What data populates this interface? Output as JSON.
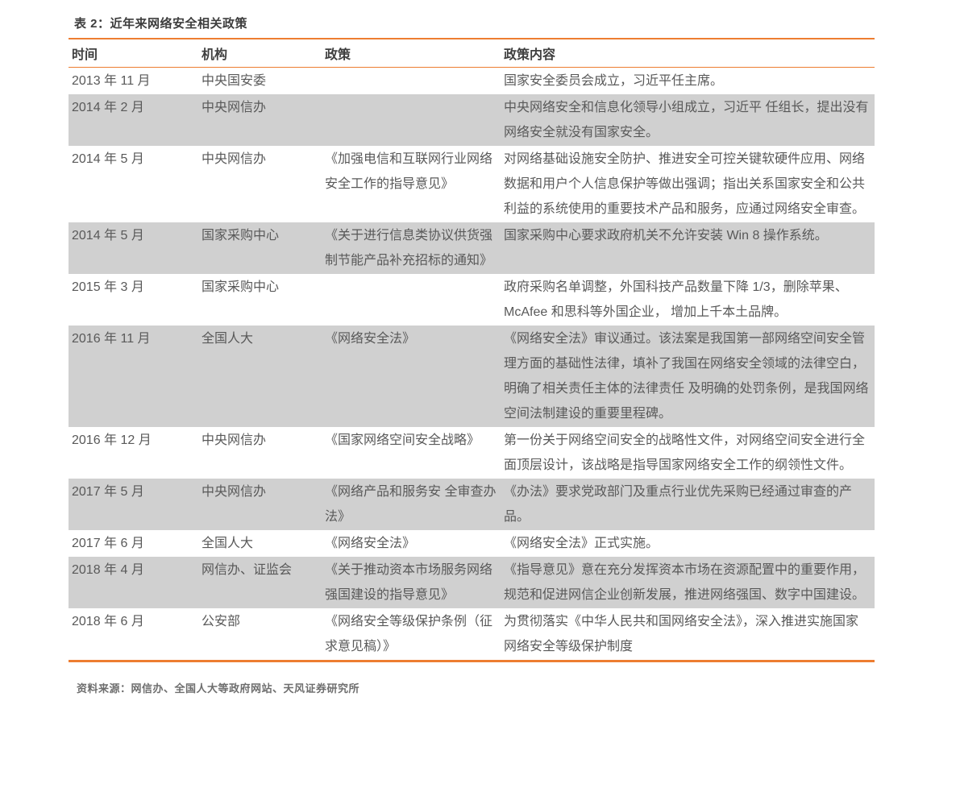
{
  "title": "表 2：近年来网络安全相关政策",
  "colors": {
    "accent_orange": "#ED7D31",
    "row_shade_gray": "#D0D0D0"
  },
  "table": {
    "headers": [
      "时间",
      "机构",
      "政策",
      "政策内容"
    ],
    "rows": [
      {
        "time": "2013 年 11 月",
        "org": "中央国安委",
        "policy": "",
        "content": "国家安全委员会成立，习近平任主席。",
        "shaded": false
      },
      {
        "time": "2014 年 2 月",
        "org": "中央网信办",
        "policy": "",
        "content": "中央网络安全和信息化领导小组成立，习近平 任组长，提出没有网络安全就没有国家安全。",
        "shaded": true
      },
      {
        "time": "2014 年 5 月",
        "org": "中央网信办",
        "policy": "《加强电信和互联网行业网络安全工作的指导意见》",
        "content": "对网络基础设施安全防护、推进安全可控关键软硬件应用、网络数据和用户个人信息保护等做出强调；指出关系国家安全和公共利益的系统使用的重要技术产品和服务，应通过网络安全审查。",
        "shaded": false
      },
      {
        "time": "2014 年 5 月",
        "org": "国家采购中心",
        "policy": "《关于进行信息类协议供货强制节能产品补充招标的通知》",
        "content": "国家采购中心要求政府机关不允许安装 Win 8 操作系统。",
        "shaded": true
      },
      {
        "time": "2015 年 3 月",
        "org": "国家采购中心",
        "policy": "",
        "content": "政府采购名单调整，外国科技产品数量下降 1/3，删除苹果、McAfee 和思科等外国企业， 增加上千本土品牌。",
        "shaded": false
      },
      {
        "time": "2016 年 11 月",
        "org": "全国人大",
        "policy": "《网络安全法》",
        "content": "《网络安全法》审议通过。该法案是我国第一部网络空间安全管理方面的基础性法律，填补了我国在网络安全领域的法律空白，明确了相关责任主体的法律责任 及明确的处罚条例，是我国网络空间法制建设的重要里程碑。",
        "shaded": true
      },
      {
        "time": "2016 年 12 月",
        "org": "中央网信办",
        "policy": "《国家网络空间安全战略》",
        "content": "第一份关于网络空间安全的战略性文件，对网络空间安全进行全面顶层设计，该战略是指导国家网络安全工作的纲领性文件。",
        "shaded": false
      },
      {
        "time": "2017 年 5 月",
        "org": "中央网信办",
        "policy": "《网络产品和服务安 全审查办法》",
        "content": "《办法》要求党政部门及重点行业优先采购已经通过审查的产品。",
        "shaded": true
      },
      {
        "time": "2017 年 6 月",
        "org": "全国人大",
        "policy": "《网络安全法》",
        "content": "《网络安全法》正式实施。",
        "shaded": false
      },
      {
        "time": "2018 年 4 月",
        "org": "网信办、证监会",
        "policy": "《关于推动资本市场服务网络强国建设的指导意见》",
        "content": "《指导意见》意在充分发挥资本市场在资源配置中的重要作用，规范和促进网信企业创新发展，推进网络强国、数字中国建设。",
        "shaded": true
      },
      {
        "time": "2018 年 6 月",
        "org": "公安部",
        "policy": "《网络安全等级保护条例（征求意见稿）》",
        "content": "为贯彻落实《中华人民共和国网络安全法》，深入推进实施国家网络安全等级保护制度",
        "shaded": false
      }
    ]
  },
  "footer": {
    "source_label": "资料来源：网信办、全国人大等政府网站、天风证券研究所"
  }
}
